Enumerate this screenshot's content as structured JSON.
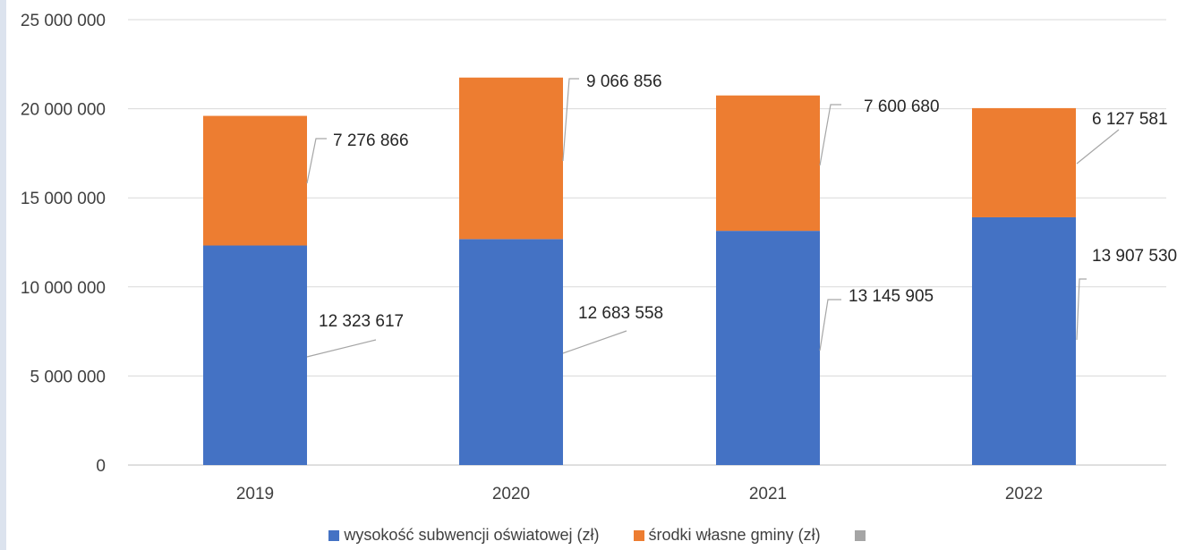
{
  "chart_data": {
    "type": "bar",
    "stacked": true,
    "categories": [
      "2019",
      "2020",
      "2021",
      "2022"
    ],
    "series": [
      {
        "name": "wysokość subwencji oświatowej (zł)",
        "color": "#4472c4",
        "values": [
          12323617,
          12683558,
          13145905,
          13907530
        ],
        "labels": [
          "12 323 617",
          "12 683 558",
          "13 145 905",
          "13 907 530"
        ]
      },
      {
        "name": "środki własne gminy (zł)",
        "color": "#ed7d31",
        "values": [
          7276866,
          9066856,
          7600680,
          6127581
        ],
        "labels": [
          "7 276 866",
          "9 066 856",
          "7 600 680",
          "6 127 581"
        ]
      }
    ],
    "extra_legend_entry": {
      "name": "",
      "color": "#a5a5a5"
    },
    "y_ticks": [
      "0",
      "5 000 000",
      "10 000 000",
      "15 000 000",
      "20 000 000",
      "25 000 000"
    ],
    "ylim": [
      0,
      25000000
    ],
    "grid": true,
    "legend_position": "bottom"
  }
}
